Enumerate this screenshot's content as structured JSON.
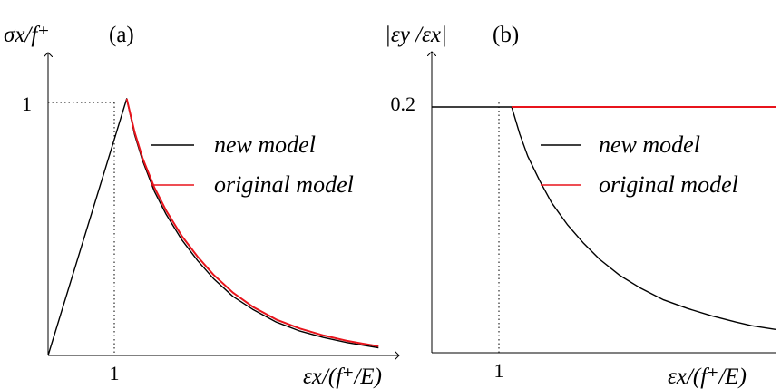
{
  "chart_data": [
    {
      "panel_label": "(a)",
      "type": "line",
      "ylabel": "σx/f⁺",
      "xlabel": "εx/(f⁺/E)",
      "x_tick_labels": [
        "1"
      ],
      "y_tick_labels": [
        "1"
      ],
      "xlim": [
        0,
        4.3
      ],
      "ylim": [
        0,
        1.18
      ],
      "grid": false,
      "legend_position": "center-right",
      "series": [
        {
          "name": "new model",
          "color": "#000000",
          "x": [
            0,
            1,
            1.1,
            1.2,
            1.35,
            1.5,
            1.7,
            1.9,
            2.1,
            2.35,
            2.6,
            2.9,
            3.2,
            3.5,
            3.8,
            4.0,
            4.2
          ],
          "y": [
            0,
            1,
            0.86,
            0.76,
            0.64,
            0.55,
            0.45,
            0.37,
            0.3,
            0.23,
            0.18,
            0.13,
            0.095,
            0.07,
            0.05,
            0.04,
            0.03
          ]
        },
        {
          "name": "original model",
          "color": "#e8141c",
          "x": [
            1,
            1.1,
            1.2,
            1.35,
            1.5,
            1.7,
            1.9,
            2.1,
            2.35,
            2.6,
            2.9,
            3.2,
            3.5,
            3.8,
            4.0,
            4.2
          ],
          "y": [
            1,
            0.87,
            0.77,
            0.655,
            0.565,
            0.465,
            0.385,
            0.315,
            0.245,
            0.19,
            0.14,
            0.105,
            0.078,
            0.057,
            0.046,
            0.036
          ]
        }
      ]
    },
    {
      "panel_label": "(b)",
      "type": "line",
      "ylabel": "|εy /εx|",
      "xlabel": "εx/(f⁺/E)",
      "x_tick_labels": [
        "1"
      ],
      "y_tick_labels": [
        "0.2"
      ],
      "xlim": [
        0,
        4.3
      ],
      "ylim": [
        0,
        0.245
      ],
      "grid": false,
      "legend_position": "center-right",
      "series": [
        {
          "name": "new model",
          "color": "#000000",
          "x": [
            0,
            1,
            1.1,
            1.2,
            1.35,
            1.5,
            1.7,
            1.9,
            2.1,
            2.35,
            2.6,
            2.9,
            3.2,
            3.5,
            3.8,
            4.0,
            4.3
          ],
          "y": [
            0.2,
            0.2,
            0.178,
            0.16,
            0.14,
            0.122,
            0.104,
            0.089,
            0.076,
            0.063,
            0.053,
            0.043,
            0.036,
            0.03,
            0.025,
            0.022,
            0.019
          ]
        },
        {
          "name": "original model",
          "color": "#e8141c",
          "x": [
            1,
            4.3
          ],
          "y": [
            0.2,
            0.2
          ]
        }
      ]
    }
  ]
}
